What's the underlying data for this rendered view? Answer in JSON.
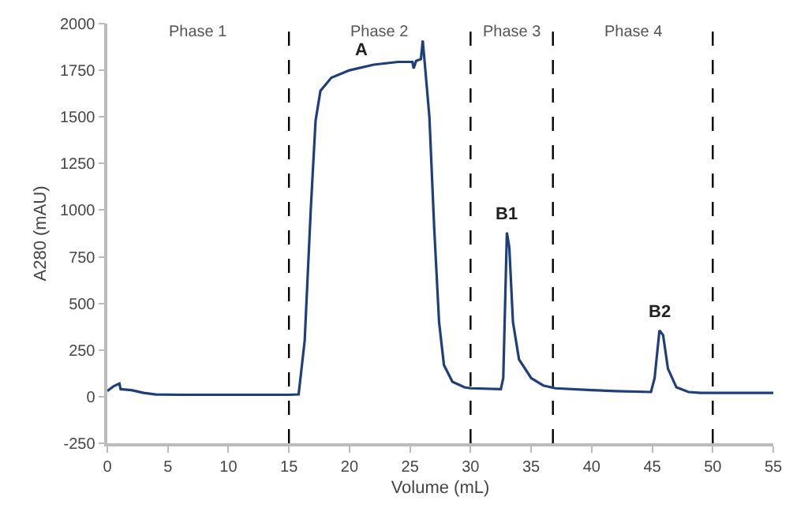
{
  "chart_data": {
    "type": "line",
    "xlabel": "Volume (mL)",
    "ylabel": "A280 (mAU)",
    "xlim": [
      0,
      55
    ],
    "xticks": [
      0,
      5,
      10,
      15,
      20,
      25,
      30,
      35,
      40,
      45,
      50,
      55
    ],
    "ylim": [
      -250,
      2000
    ],
    "yticks": [
      -250,
      0,
      250,
      500,
      750,
      1000,
      1250,
      1500,
      1750,
      2000
    ],
    "marker": "none",
    "line_style": "solid",
    "series": [
      {
        "color": "#1f3f7a",
        "x": [
          0,
          0.5,
          1,
          1.1,
          2,
          3,
          4,
          6,
          15,
          15.8,
          16.3,
          16.8,
          17.2,
          17.6,
          18.5,
          20,
          22,
          24,
          25.2,
          25.3,
          25.5,
          25.9,
          26.05,
          26.2,
          26.6,
          27,
          27.4,
          27.8,
          28.5,
          29.5,
          30,
          32.5,
          32.7,
          33,
          33.2,
          33.5,
          34,
          35,
          36,
          37,
          40,
          42,
          44.9,
          45.2,
          45.6,
          45.9,
          46.3,
          47,
          48,
          49,
          50,
          55
        ],
        "values": [
          30,
          55,
          70,
          40,
          35,
          20,
          12,
          10,
          10,
          12,
          300,
          1000,
          1480,
          1640,
          1710,
          1750,
          1780,
          1795,
          1795,
          1760,
          1800,
          1810,
          1910,
          1800,
          1500,
          900,
          400,
          170,
          80,
          50,
          45,
          40,
          100,
          880,
          800,
          400,
          200,
          100,
          60,
          45,
          35,
          30,
          25,
          100,
          355,
          330,
          150,
          50,
          25,
          20,
          20,
          20
        ]
      }
    ],
    "ref_lines": [
      {
        "axis": "x",
        "value": 15,
        "color": "#000000",
        "line_style": "dashed"
      },
      {
        "axis": "x",
        "value": 30,
        "color": "#000000",
        "line_style": "dashed"
      },
      {
        "axis": "x",
        "value": 36.8,
        "color": "#000000",
        "line_style": "dashed"
      },
      {
        "axis": "x",
        "value": 50,
        "color": "#000000",
        "line_style": "dashed"
      }
    ],
    "annotations": [
      {
        "text": "Phase 1",
        "x": 7.5,
        "y": 1950
      },
      {
        "text": "Phase 2",
        "x": 22.5,
        "y": 1950
      },
      {
        "text": "Phase 3",
        "x": 33.4,
        "y": 1950
      },
      {
        "text": "Phase 4",
        "x": 43.4,
        "y": 1950
      },
      {
        "text": "A",
        "x": 21,
        "y": 1765
      },
      {
        "text": "B1",
        "x": 33,
        "y": 880
      },
      {
        "text": "B2",
        "x": 45.6,
        "y": 355
      }
    ]
  }
}
